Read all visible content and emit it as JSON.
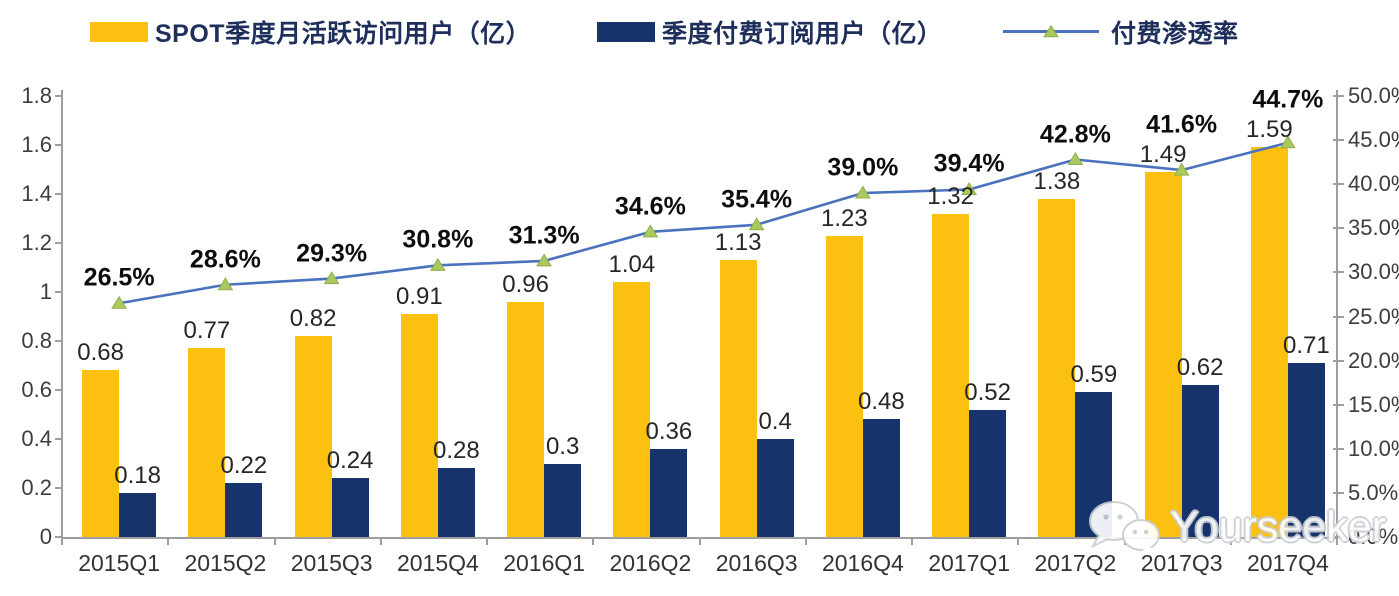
{
  "legend": [
    {
      "label": "SPOT季度月活跃访问用户（亿）",
      "type": "bar",
      "color": "#fcc011"
    },
    {
      "label": "季度付费订阅用户（亿）",
      "type": "bar",
      "color": "#16336b"
    },
    {
      "label": "付费渗透率",
      "type": "line",
      "color": "#4a72bd",
      "marker_color": "#a9c95f"
    }
  ],
  "chart_data": {
    "type": "bar+line combo",
    "categories": [
      "2015Q1",
      "2015Q2",
      "2015Q3",
      "2015Q4",
      "2016Q1",
      "2016Q2",
      "2016Q3",
      "2016Q4",
      "2017Q1",
      "2017Q2",
      "2017Q3",
      "2017Q4"
    ],
    "series": [
      {
        "name": "SPOT季度月活跃访问用户（亿）",
        "type": "bar",
        "axis": "left",
        "color": "#fcc011",
        "values": [
          0.68,
          0.77,
          0.82,
          0.91,
          0.96,
          1.04,
          1.13,
          1.23,
          1.32,
          1.38,
          1.49,
          1.59
        ],
        "labels": [
          "0.68",
          "0.77",
          "0.82",
          "0.91",
          "0.96",
          "1.04",
          "1.13",
          "1.23",
          "1.32",
          "1.38",
          "1.49",
          "1.59"
        ]
      },
      {
        "name": "季度付费订阅用户（亿）",
        "type": "bar",
        "axis": "left",
        "color": "#16336b",
        "values": [
          0.18,
          0.22,
          0.24,
          0.28,
          0.3,
          0.36,
          0.4,
          0.48,
          0.52,
          0.59,
          0.62,
          0.71
        ],
        "labels": [
          "0.18",
          "0.22",
          "0.24",
          "0.28",
          "0.3",
          "0.36",
          "0.4",
          "0.48",
          "0.52",
          "0.59",
          "0.62",
          "0.71"
        ]
      },
      {
        "name": "付费渗透率",
        "type": "line",
        "axis": "right",
        "color": "#4a72bd",
        "marker": "triangle",
        "marker_color": "#a9c95f",
        "values": [
          26.5,
          28.6,
          29.3,
          30.8,
          31.3,
          34.6,
          35.4,
          39.0,
          39.4,
          42.8,
          41.6,
          44.7
        ],
        "labels": [
          "26.5%",
          "28.6%",
          "29.3%",
          "30.8%",
          "31.3%",
          "34.6%",
          "35.4%",
          "39.0%",
          "39.4%",
          "42.8%",
          "41.6%",
          "44.7%"
        ]
      }
    ],
    "left_axis": {
      "min": 0,
      "max": 1.8,
      "tick_labels": [
        "1.8",
        "1.6",
        "1.4",
        "1.2",
        "1",
        "0.8",
        "0.6",
        "0.4",
        "0.2",
        "0"
      ]
    },
    "right_axis": {
      "min": 0,
      "max": 50,
      "tick_labels": [
        "50.0%",
        "45.0%",
        "40.0%",
        "35.0%",
        "30.0%",
        "25.0%",
        "20.0%",
        "15.0%",
        "10.0%",
        "5.0%",
        "0.0%"
      ]
    },
    "grid": false,
    "legend_position": "top"
  },
  "watermark": {
    "text": "Yourseeker",
    "icon": "wechat-icon"
  }
}
